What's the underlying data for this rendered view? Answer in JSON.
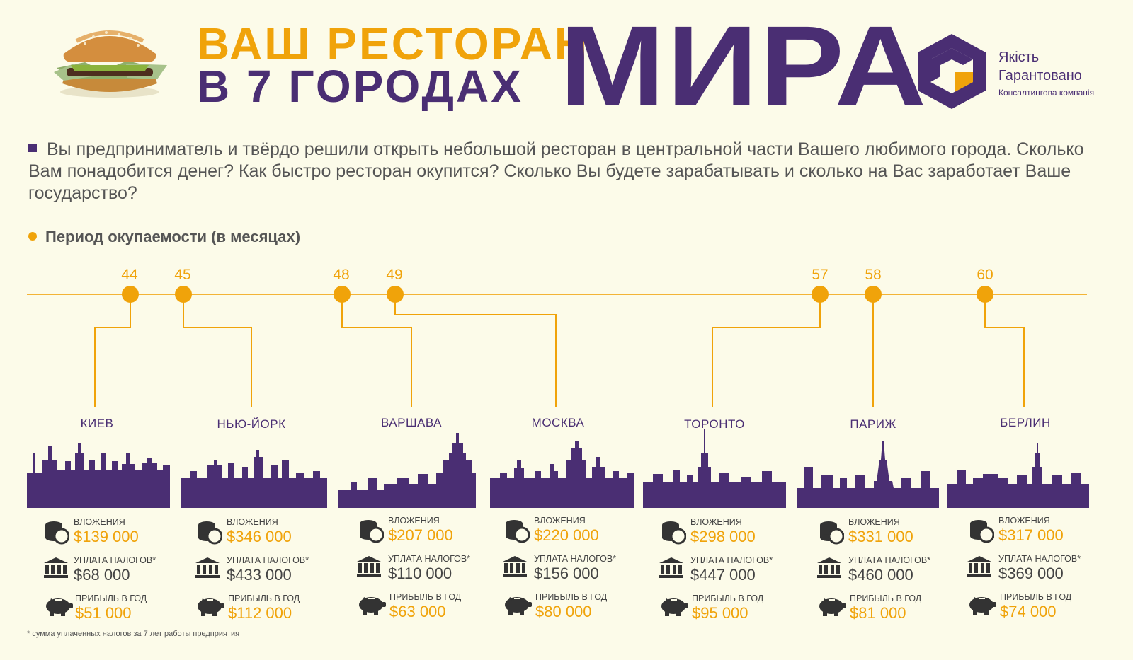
{
  "header": {
    "title_line1": "ВАШ РЕСТОРАН",
    "title_line2": "В 7 ГОРОДАХ",
    "title_big": "МИРА"
  },
  "logo": {
    "line1": "Якість",
    "line2": "Гарантовано",
    "line3": "Консалтингова компанія"
  },
  "intro": "Вы предприниматель и твёрдо решили открыть небольшой ресторан в центральной части Вашего любимого города. Сколько Вам понадобится денег? Как быстро ресторан окупится? Сколько Вы будете зарабатывать и сколько на Вас заработает Ваше государство?",
  "section_label": "Период окупаемости (в месяцах)",
  "labels": {
    "investment": "ВЛОЖЕНИЯ",
    "taxes": "УПЛАТА НАЛОГОВ*",
    "profit": "ПРИБЫЛЬ В ГОД"
  },
  "cities": [
    {
      "name": "КИЕВ",
      "months": "44",
      "investment": "$139 000",
      "taxes": "$68 000",
      "profit": "$51 000"
    },
    {
      "name": "НЬЮ-ЙОРК",
      "months": "45",
      "investment": "$346 000",
      "taxes": "$433 000",
      "profit": "$112 000"
    },
    {
      "name": "ВАРШАВА",
      "months": "48",
      "investment": "$207 000",
      "taxes": "$110 000",
      "profit": "$63 000"
    },
    {
      "name": "МОСКВА",
      "months": "49",
      "investment": "$220 000",
      "taxes": "$156 000",
      "profit": "$80 000"
    },
    {
      "name": "ТОРОНТО",
      "months": "57",
      "investment": "$298 000",
      "taxes": "$447 000",
      "profit": "$95 000"
    },
    {
      "name": "ПАРИЖ",
      "months": "58",
      "investment": "$331 000",
      "taxes": "$460 000",
      "profit": "$81 000"
    },
    {
      "name": "БЕРЛИН",
      "months": "60",
      "investment": "$317 000",
      "taxes": "$369 000",
      "profit": "$74 000"
    }
  ],
  "footnote": "* сумма уплаченных налогов за 7 лет работы предприятия",
  "colors": {
    "purple": "#4a2e73",
    "orange": "#f0a30a",
    "background": "#fcfbe9"
  }
}
